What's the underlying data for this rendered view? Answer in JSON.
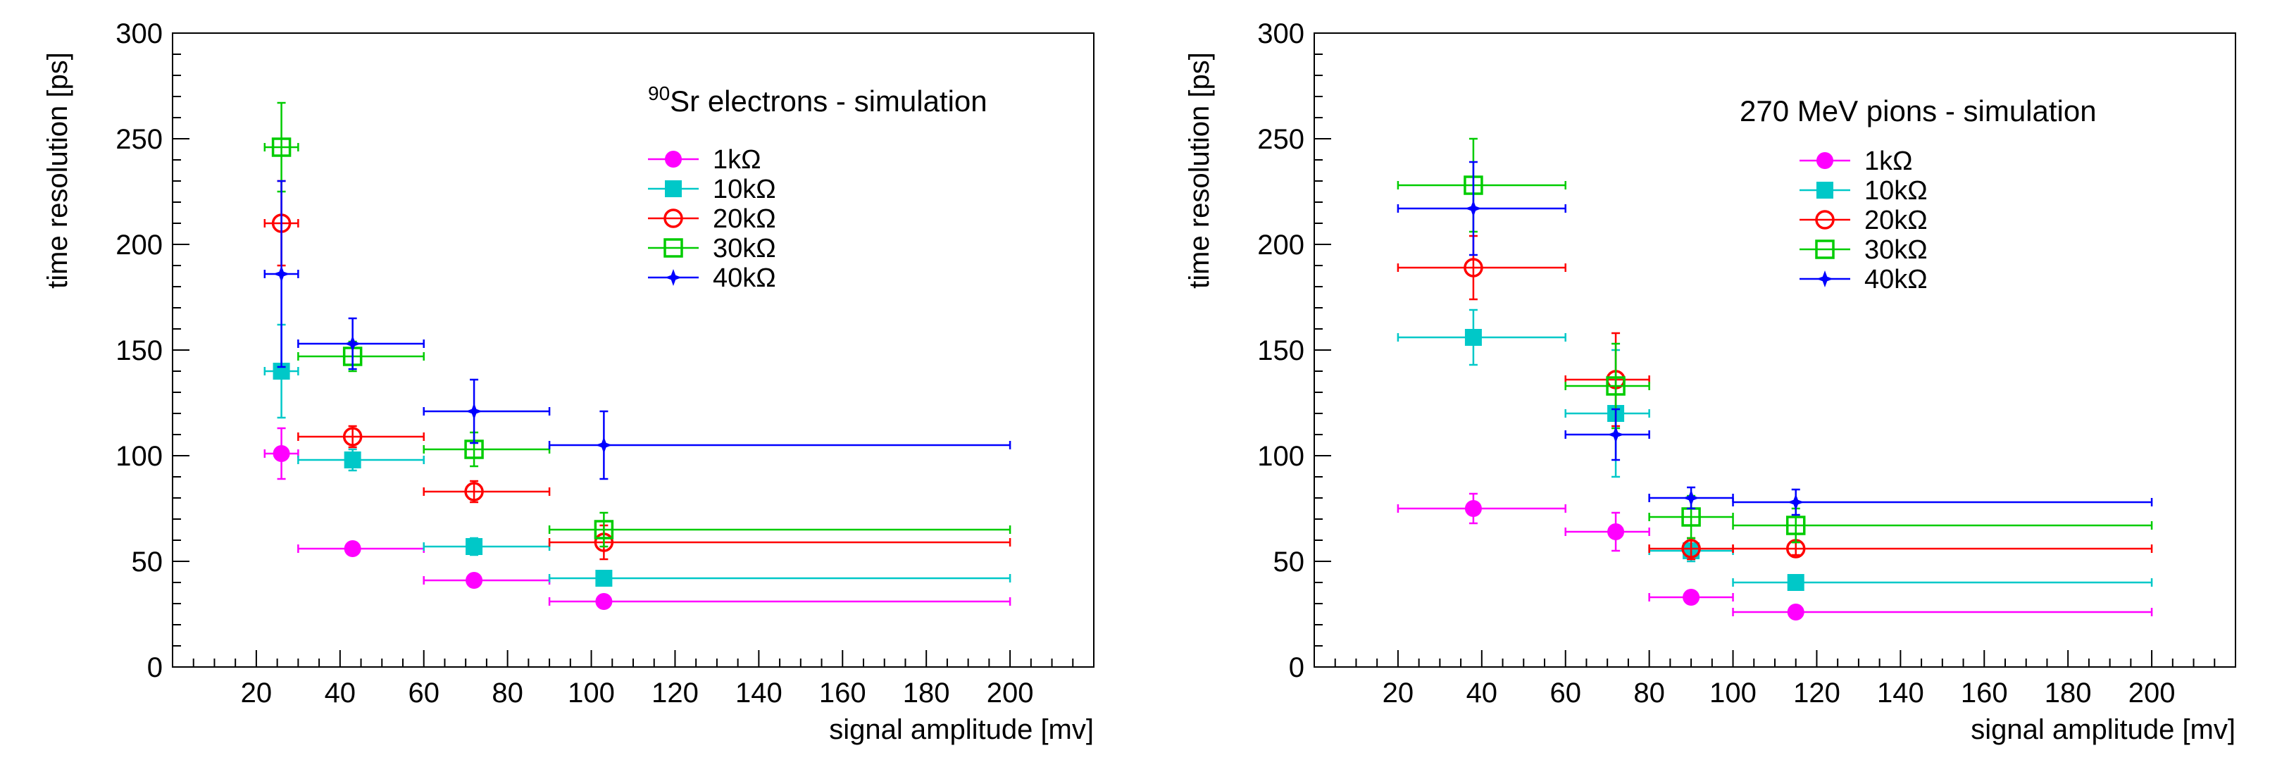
{
  "chart_data": [
    {
      "type": "scatter",
      "title": "",
      "annotation": {
        "superscript": "90",
        "text": "Sr electrons - simulation"
      },
      "xlabel": "signal amplitude [mv]",
      "ylabel": "time resolution [ps]",
      "xlim": [
        0,
        220
      ],
      "ylim": [
        0,
        300
      ],
      "x_ticks": [
        "20",
        "40",
        "60",
        "80",
        "100",
        "120",
        "140",
        "160",
        "180",
        "200"
      ],
      "y_ticks": [
        "0",
        "50",
        "100",
        "150",
        "200",
        "250",
        "300"
      ],
      "grid": false,
      "legend_position": "top-right",
      "series": [
        {
          "name": "1kΩ",
          "color": "#ff00ff",
          "marker": "circle-filled",
          "points": [
            {
              "x": 26,
              "y": 101,
              "xerr": [
                22,
                30
              ],
              "yerr": 12
            },
            {
              "x": 43,
              "y": 56,
              "xerr": [
                30,
                60
              ],
              "yerr": 2
            },
            {
              "x": 72,
              "y": 41,
              "xerr": [
                60,
                90
              ],
              "yerr": 2
            },
            {
              "x": 103,
              "y": 31,
              "xerr": [
                90,
                200
              ],
              "yerr": 2
            }
          ]
        },
        {
          "name": "10kΩ",
          "color": "#00c8c8",
          "marker": "square-filled",
          "points": [
            {
              "x": 26,
              "y": 140,
              "xerr": [
                22,
                30
              ],
              "yerr": 22
            },
            {
              "x": 43,
              "y": 98,
              "xerr": [
                30,
                60
              ],
              "yerr": 5
            },
            {
              "x": 72,
              "y": 57,
              "xerr": [
                60,
                90
              ],
              "yerr": 4
            },
            {
              "x": 103,
              "y": 42,
              "xerr": [
                90,
                200
              ],
              "yerr": 2
            }
          ]
        },
        {
          "name": "20kΩ",
          "color": "#ff0000",
          "marker": "circle-open",
          "points": [
            {
              "x": 26,
              "y": 210,
              "xerr": [
                22,
                30
              ],
              "yerr": 20
            },
            {
              "x": 43,
              "y": 109,
              "xerr": [
                30,
                60
              ],
              "yerr": 5
            },
            {
              "x": 72,
              "y": 83,
              "xerr": [
                60,
                90
              ],
              "yerr": 5
            },
            {
              "x": 103,
              "y": 59,
              "xerr": [
                90,
                200
              ],
              "yerr": 8
            }
          ]
        },
        {
          "name": "30kΩ",
          "color": "#00cc00",
          "marker": "square-open",
          "points": [
            {
              "x": 26,
              "y": 246,
              "xerr": [
                22,
                30
              ],
              "yerr": 21
            },
            {
              "x": 43,
              "y": 147,
              "xerr": [
                30,
                60
              ],
              "yerr": 7
            },
            {
              "x": 72,
              "y": 103,
              "xerr": [
                60,
                90
              ],
              "yerr": 8
            },
            {
              "x": 103,
              "y": 65,
              "xerr": [
                90,
                200
              ],
              "yerr": 8
            }
          ]
        },
        {
          "name": "40kΩ",
          "color": "#0000ff",
          "marker": "star",
          "points": [
            {
              "x": 26,
              "y": 186,
              "xerr": [
                22,
                30
              ],
              "yerr": 44
            },
            {
              "x": 43,
              "y": 153,
              "xerr": [
                30,
                60
              ],
              "yerr": 12
            },
            {
              "x": 72,
              "y": 121,
              "xerr": [
                60,
                90
              ],
              "yerr": 15
            },
            {
              "x": 103,
              "y": 105,
              "xerr": [
                90,
                200
              ],
              "yerr": 16
            }
          ]
        }
      ]
    },
    {
      "type": "scatter",
      "title": "",
      "annotation": {
        "superscript": "",
        "text": "270 MeV pions - simulation"
      },
      "xlabel": "signal amplitude [mv]",
      "ylabel": "time resolution [ps]",
      "xlim": [
        0,
        220
      ],
      "ylim": [
        0,
        300
      ],
      "x_ticks": [
        "20",
        "40",
        "60",
        "80",
        "100",
        "120",
        "140",
        "160",
        "180",
        "200"
      ],
      "y_ticks": [
        "0",
        "50",
        "100",
        "150",
        "200",
        "250",
        "300"
      ],
      "grid": false,
      "legend_position": "top-right",
      "series": [
        {
          "name": "1kΩ",
          "color": "#ff00ff",
          "marker": "circle-filled",
          "points": [
            {
              "x": 38,
              "y": 75,
              "xerr": [
                20,
                60
              ],
              "yerr": 7
            },
            {
              "x": 72,
              "y": 64,
              "xerr": [
                60,
                80
              ],
              "yerr": 9
            },
            {
              "x": 90,
              "y": 33,
              "xerr": [
                80,
                100
              ],
              "yerr": 3
            },
            {
              "x": 115,
              "y": 26,
              "xerr": [
                100,
                200
              ],
              "yerr": 2
            }
          ]
        },
        {
          "name": "10kΩ",
          "color": "#00c8c8",
          "marker": "square-filled",
          "points": [
            {
              "x": 38,
              "y": 156,
              "xerr": [
                20,
                60
              ],
              "yerr": 13
            },
            {
              "x": 72,
              "y": 120,
              "xerr": [
                60,
                80
              ],
              "yerr": 30
            },
            {
              "x": 90,
              "y": 55,
              "xerr": [
                80,
                100
              ],
              "yerr": 5
            },
            {
              "x": 115,
              "y": 40,
              "xerr": [
                100,
                200
              ],
              "yerr": 2
            }
          ]
        },
        {
          "name": "20kΩ",
          "color": "#ff0000",
          "marker": "circle-open",
          "points": [
            {
              "x": 38,
              "y": 189,
              "xerr": [
                20,
                60
              ],
              "yerr": 15
            },
            {
              "x": 72,
              "y": 136,
              "xerr": [
                60,
                80
              ],
              "yerr": 22
            },
            {
              "x": 90,
              "y": 56,
              "xerr": [
                80,
                100
              ],
              "yerr": 5
            },
            {
              "x": 115,
              "y": 56,
              "xerr": [
                100,
                200
              ],
              "yerr": 3
            }
          ]
        },
        {
          "name": "30kΩ",
          "color": "#00cc00",
          "marker": "square-open",
          "points": [
            {
              "x": 38,
              "y": 228,
              "xerr": [
                20,
                60
              ],
              "yerr": 22
            },
            {
              "x": 72,
              "y": 133,
              "xerr": [
                60,
                80
              ],
              "yerr": 20
            },
            {
              "x": 90,
              "y": 71,
              "xerr": [
                80,
                100
              ],
              "yerr": 10
            },
            {
              "x": 115,
              "y": 67,
              "xerr": [
                100,
                200
              ],
              "yerr": 8
            }
          ]
        },
        {
          "name": "40kΩ",
          "color": "#0000ff",
          "marker": "star",
          "points": [
            {
              "x": 38,
              "y": 217,
              "xerr": [
                20,
                60
              ],
              "yerr": 22
            },
            {
              "x": 72,
              "y": 110,
              "xerr": [
                60,
                80
              ],
              "yerr": 12
            },
            {
              "x": 90,
              "y": 80,
              "xerr": [
                80,
                100
              ],
              "yerr": 5
            },
            {
              "x": 115,
              "y": 78,
              "xerr": [
                100,
                200
              ],
              "yerr": 6
            }
          ]
        }
      ]
    }
  ]
}
